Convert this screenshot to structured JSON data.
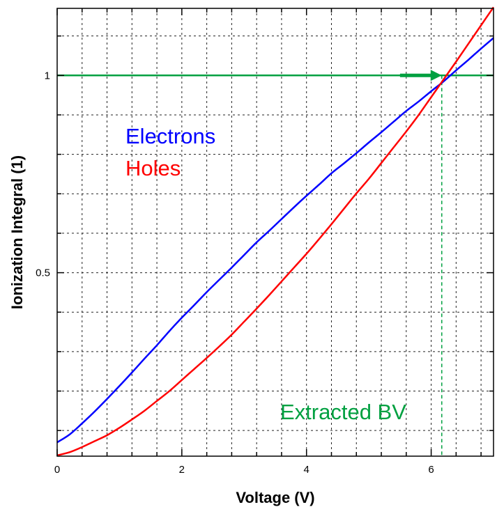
{
  "chart_data": {
    "type": "line",
    "title": "",
    "xlabel": "Voltage (V)",
    "ylabel": "Ionization Integral (1)",
    "xlim": [
      0,
      7
    ],
    "ylim": [
      0.035,
      1.17
    ],
    "grid": true,
    "x_ticks": [
      0,
      2,
      4,
      6
    ],
    "x_tick_labels": [
      "0",
      "2",
      "4",
      "6"
    ],
    "y_ticks": [
      0.5,
      1
    ],
    "y_tick_labels": [
      "0.5",
      "1"
    ],
    "legend": {
      "placement": "upper-left",
      "entries": [
        "Electrons",
        "Holes"
      ]
    },
    "series": [
      {
        "name": "Electrons",
        "color": "#0000ff",
        "x": [
          0,
          0.2,
          0.4,
          0.6,
          0.8,
          1.0,
          1.2,
          1.4,
          1.6,
          1.8,
          2.0,
          2.2,
          2.4,
          2.6,
          2.8,
          3.0,
          3.2,
          3.4,
          3.6,
          3.8,
          4.0,
          4.2,
          4.4,
          4.6,
          4.8,
          5.0,
          5.2,
          5.4,
          5.6,
          5.8,
          6.0,
          6.2,
          6.4,
          6.6,
          6.8,
          7.0
        ],
        "values": [
          0.07,
          0.09,
          0.118,
          0.148,
          0.18,
          0.213,
          0.247,
          0.282,
          0.316,
          0.352,
          0.386,
          0.418,
          0.451,
          0.482,
          0.513,
          0.545,
          0.577,
          0.606,
          0.636,
          0.666,
          0.695,
          0.723,
          0.752,
          0.777,
          0.803,
          0.83,
          0.856,
          0.883,
          0.91,
          0.934,
          0.96,
          0.985,
          1.013,
          1.04,
          1.068,
          1.095
        ]
      },
      {
        "name": "Holes",
        "color": "#ff0000",
        "x": [
          0,
          0.2,
          0.4,
          0.6,
          0.8,
          1.0,
          1.2,
          1.4,
          1.6,
          1.8,
          2.0,
          2.2,
          2.4,
          2.6,
          2.8,
          3.0,
          3.2,
          3.4,
          3.6,
          3.8,
          4.0,
          4.2,
          4.4,
          4.6,
          4.8,
          5.0,
          5.2,
          5.4,
          5.6,
          5.8,
          6.0,
          6.2,
          6.4,
          6.6,
          6.8,
          7.0
        ],
        "values": [
          0.037,
          0.045,
          0.058,
          0.073,
          0.088,
          0.107,
          0.128,
          0.15,
          0.175,
          0.2,
          0.228,
          0.256,
          0.284,
          0.313,
          0.343,
          0.376,
          0.409,
          0.443,
          0.478,
          0.513,
          0.548,
          0.585,
          0.623,
          0.662,
          0.701,
          0.738,
          0.778,
          0.818,
          0.858,
          0.9,
          0.945,
          0.99,
          1.035,
          1.081,
          1.127,
          1.173
        ]
      }
    ],
    "reference_lines": [
      {
        "orientation": "horizontal",
        "value": 1,
        "color": "#00a040"
      },
      {
        "orientation": "vertical",
        "value": 6.17,
        "color": "#00a040",
        "dashed": true
      }
    ],
    "annotations": [
      {
        "text": "Extracted BV",
        "color": "#00a040",
        "x": 4.2,
        "y": 0.12
      },
      {
        "type": "arrow",
        "color": "#00a040",
        "from": [
          5.5,
          1.0
        ],
        "to": [
          6.17,
          1.0
        ]
      }
    ]
  }
}
